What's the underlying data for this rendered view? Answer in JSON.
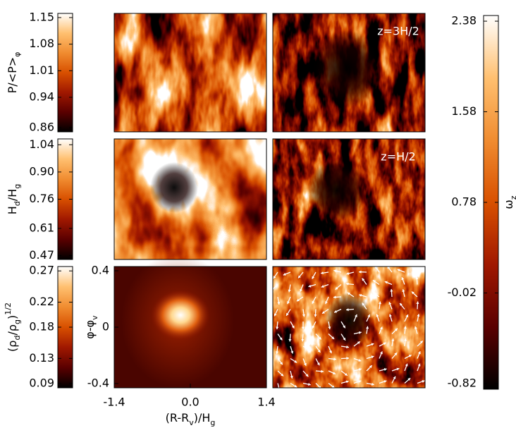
{
  "colormap": [
    "#000000",
    "#5a0000",
    "#a01800",
    "#d85000",
    "#f08c30",
    "#ffc070",
    "#ffffff"
  ],
  "chart_data": [
    {
      "type": "colorbar",
      "label": [
        {
          "text": "P/<P>"
        },
        {
          "text": "φ",
          "shift": "sub"
        }
      ],
      "ylim": [
        0.849,
        1.161
      ],
      "yticks": [
        0.86,
        0.94,
        1.01,
        1.08,
        1.15
      ]
    },
    {
      "type": "colorbar",
      "label": [
        {
          "text": "H"
        },
        {
          "text": "d",
          "shift": "sub"
        },
        {
          "text": "/H"
        },
        {
          "text": "g",
          "shift": "sub"
        }
      ],
      "ylim": [
        0.45,
        1.07
      ],
      "yticks": [
        0.47,
        0.61,
        0.76,
        {
          "value": 0.9,
          "label": "0.90"
        },
        1.04
      ]
    },
    {
      "type": "colorbar",
      "label": [
        {
          "text": "(ρ"
        },
        {
          "text": "d",
          "shift": "sub"
        },
        {
          "text": "/ρ"
        },
        {
          "text": "g",
          "shift": "sub"
        },
        {
          "text": ")"
        },
        {
          "text": "1/2",
          "shift": "super"
        }
      ],
      "ylim": [
        0.083,
        0.277
      ],
      "yticks": [
        0.09,
        0.13,
        0.18,
        0.22,
        0.27
      ]
    },
    {
      "type": "colorbar",
      "label": [
        {
          "text": "ω"
        },
        {
          "text": "z",
          "shift": "sub"
        }
      ],
      "ylim": [
        -0.87,
        2.43
      ],
      "yticks": [
        -0.82,
        -0.02,
        0.78,
        1.58,
        2.38
      ]
    },
    {
      "type": "heatmap",
      "xlim": [
        -1.4,
        1.4
      ],
      "ylim": [
        -0.43,
        0.43
      ],
      "xticks": [
        -1.4,
        {
          "value": 0,
          "label": "0.0"
        },
        1.4
      ],
      "yticks": [
        -0.4,
        0,
        0.4
      ],
      "xlabel": [
        {
          "text": "(R-R"
        },
        {
          "text": "v",
          "shift": "sub"
        },
        {
          "text": ")/H"
        },
        {
          "text": "g",
          "shift": "sub"
        }
      ],
      "ylabel": [
        {
          "text": "φ-φ"
        },
        {
          "text": "v",
          "shift": "sub"
        }
      ],
      "annotations": [
        "z=3H/2",
        "z=H/2"
      ]
    }
  ]
}
